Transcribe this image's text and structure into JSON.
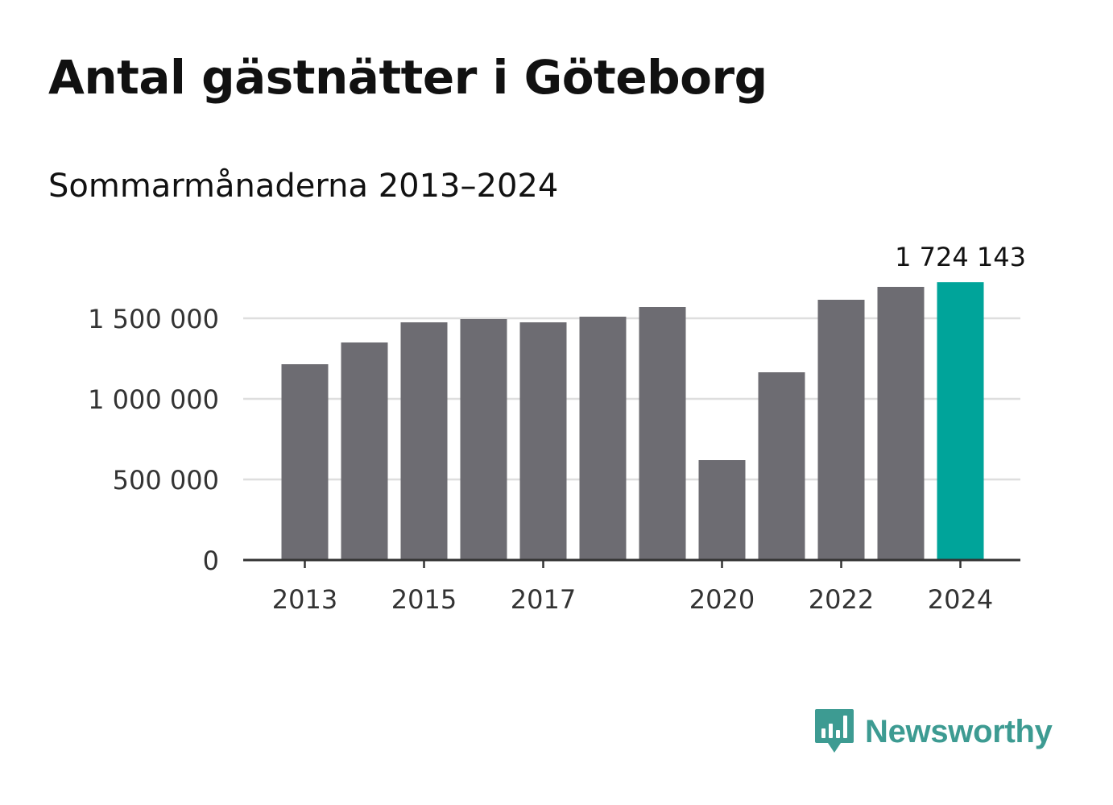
{
  "title": "Antal gästnätter i Göteborg",
  "subtitle": "Sommarmånaderna 2013–2024",
  "brand": {
    "name": "Newsworthy",
    "color": "#3d9b92",
    "icon": "bar-chart-speech-bubble-icon"
  },
  "chart_data": {
    "type": "bar",
    "categories": [
      "2013",
      "2014",
      "2015",
      "2016",
      "2017",
      "2018",
      "2019",
      "2020",
      "2021",
      "2022",
      "2023",
      "2024"
    ],
    "values": [
      1215000,
      1350000,
      1475000,
      1495000,
      1475000,
      1510000,
      1570000,
      620000,
      1165000,
      1615000,
      1695000,
      1724143
    ],
    "x_tick_labels": [
      "2013",
      "2015",
      "2017",
      "2020",
      "2022",
      "2024"
    ],
    "y_ticks": [
      0,
      500000,
      1000000,
      1500000
    ],
    "y_tick_labels": [
      "0",
      "500 000",
      "1 000 000",
      "1 500 000"
    ],
    "ylim": [
      0,
      1800000
    ],
    "annotation": {
      "category": "2024",
      "label": "1 724 143"
    },
    "colors": {
      "bar": "#6d6c72",
      "highlight": "#00a49a",
      "grid": "#dedede",
      "axis": "#333333"
    },
    "xlabel": "",
    "ylabel": "",
    "grid": true
  }
}
